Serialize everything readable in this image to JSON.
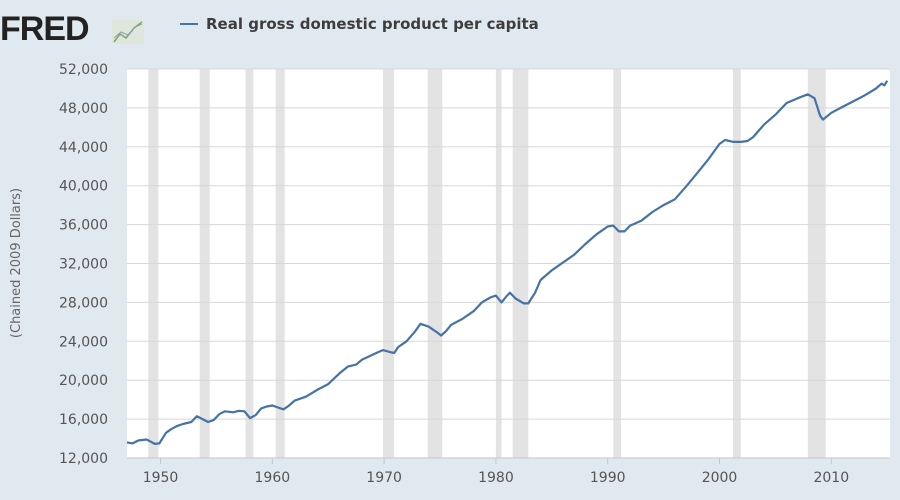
{
  "brand": {
    "logo_text": "FRED"
  },
  "chart_data": {
    "type": "line",
    "title": "",
    "xlabel": "",
    "ylabel": "(Chained 2009 Dollars)",
    "xlim": [
      1947,
      2015.25
    ],
    "ylim": [
      12000,
      52000
    ],
    "grid": true,
    "legend_position": "top",
    "x_ticks": [
      1950,
      1960,
      1970,
      1980,
      1990,
      2000,
      2010
    ],
    "x_tick_labels": [
      "1950",
      "1960",
      "1970",
      "1980",
      "1990",
      "2000",
      "2010"
    ],
    "y_ticks": [
      12000,
      16000,
      20000,
      24000,
      28000,
      32000,
      36000,
      40000,
      44000,
      48000,
      52000
    ],
    "y_tick_labels": [
      "12,000",
      "16,000",
      "20,000",
      "24,000",
      "28,000",
      "32,000",
      "36,000",
      "40,000",
      "44,000",
      "48,000",
      "52,000"
    ],
    "recessions": [
      [
        1948.9,
        1949.8
      ],
      [
        1953.5,
        1954.4
      ],
      [
        1957.6,
        1958.3
      ],
      [
        1960.3,
        1961.1
      ],
      [
        1969.9,
        1970.9
      ],
      [
        1973.9,
        1975.2
      ],
      [
        1980.0,
        1980.5
      ],
      [
        1981.5,
        1982.9
      ],
      [
        1990.5,
        1991.2
      ],
      [
        2001.2,
        2001.9
      ],
      [
        2007.9,
        2009.5
      ]
    ],
    "colors": {
      "line": "#4572a7",
      "recession": "#e3e3e3",
      "background": "#e1e9f0",
      "plot": "#ffffff",
      "grid": "#d8d8d8"
    },
    "series": [
      {
        "name": "Real gross domestic product per capita",
        "x": [
          1947,
          1947.5,
          1948,
          1948.75,
          1949.5,
          1949.9,
          1950,
          1950.5,
          1951,
          1951.5,
          1952,
          1952.75,
          1953.25,
          1953.75,
          1954.25,
          1954.75,
          1955.25,
          1955.75,
          1956.5,
          1957,
          1957.5,
          1958,
          1958.5,
          1959,
          1959.5,
          1960,
          1960.75,
          1961,
          1961.5,
          1962,
          1963,
          1964,
          1965,
          1966,
          1966.75,
          1967.5,
          1968,
          1968.75,
          1969.5,
          1969.9,
          1970.5,
          1970.9,
          1971.25,
          1972,
          1972.75,
          1973.25,
          1974,
          1974.75,
          1975.1,
          1975.5,
          1976,
          1977,
          1978,
          1978.75,
          1979.5,
          1980,
          1980.5,
          1981,
          1981.25,
          1981.75,
          1982.5,
          1982.9,
          1983.5,
          1984,
          1985,
          1986,
          1987,
          1988,
          1989,
          1990,
          1990.5,
          1991,
          1991.5,
          1992,
          1993,
          1994,
          1995,
          1996,
          1997,
          1998,
          1999,
          2000,
          2000.5,
          2001.25,
          2001.9,
          2002.5,
          2003,
          2004,
          2005,
          2006,
          2007,
          2007.9,
          2008.5,
          2009,
          2009.25,
          2010,
          2011,
          2012,
          2013,
          2014,
          2014.5,
          2014.75,
          2015
        ],
        "values": [
          13600,
          13500,
          13800,
          13900,
          13450,
          13500,
          13700,
          14600,
          15000,
          15300,
          15500,
          15700,
          16300,
          16000,
          15700,
          15900,
          16500,
          16800,
          16700,
          16850,
          16800,
          16100,
          16400,
          17100,
          17300,
          17400,
          17100,
          17000,
          17400,
          17900,
          18300,
          19000,
          19600,
          20700,
          21400,
          21600,
          22100,
          22500,
          22900,
          23100,
          22900,
          22800,
          23400,
          24000,
          25000,
          25800,
          25500,
          24900,
          24600,
          25000,
          25700,
          26300,
          27100,
          28000,
          28500,
          28700,
          28000,
          28700,
          29000,
          28400,
          27900,
          27900,
          29000,
          30300,
          31300,
          32100,
          32900,
          34000,
          35000,
          35800,
          35900,
          35300,
          35300,
          35900,
          36400,
          37300,
          38000,
          38600,
          39900,
          41300,
          42700,
          44300,
          44700,
          44500,
          44500,
          44600,
          45000,
          46300,
          47300,
          48500,
          49000,
          49400,
          49000,
          47200,
          46800,
          47500,
          48100,
          48700,
          49300,
          50000,
          50500,
          50300,
          50800
        ]
      }
    ]
  }
}
